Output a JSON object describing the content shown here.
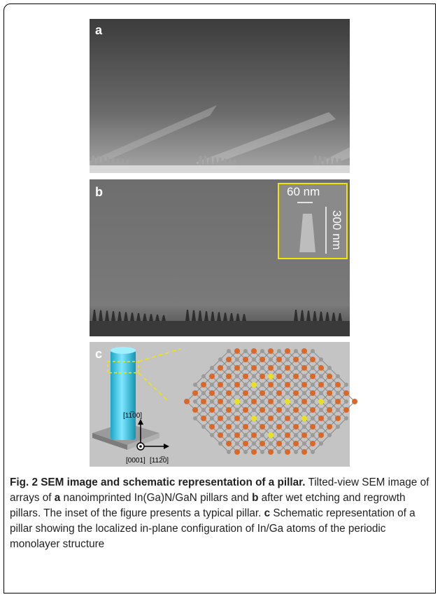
{
  "panels": {
    "a": {
      "label": "a"
    },
    "b": {
      "label": "b",
      "inset": {
        "width_label": "60 nm",
        "height_label": "300 nm"
      }
    },
    "c": {
      "label": "c",
      "axes": {
        "vertical": "[11̅00]",
        "out_of_plane": "[0001]",
        "horizontal": "[112̅0]"
      }
    }
  },
  "caption": {
    "title": "Fig. 2 SEM image and schematic representation of a pillar.",
    "segments": [
      " Tilted-view SEM image of arrays of ",
      "a",
      " nanoimprinted In(Ga)N/GaN pillars and ",
      "b",
      " after wet etching and regrowth pillars. The inset of the figure presents a typical pillar. ",
      "c",
      " Schematic representation of a pillar showing the localized in-plane configuration of In/Ga atoms of the periodic monolayer structure"
    ]
  }
}
